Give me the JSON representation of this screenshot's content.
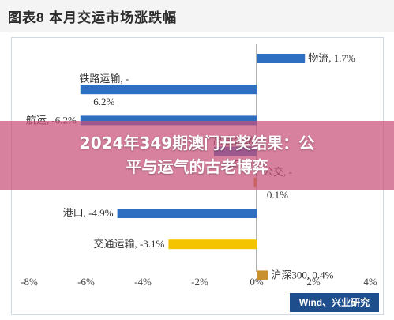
{
  "header": {
    "title": "图表8 本月交运市场涨跌幅"
  },
  "overlay": {
    "line1": "2024年349期澳门开奖结果：公",
    "line2": "平与运气的古老博弈"
  },
  "brand": {
    "text": "Wind、兴业研究"
  },
  "colors": {
    "bar": "#2f6fc2",
    "bar_highlight": "#f5c400",
    "bar_small": "#c8902e",
    "brand": "#1f4e8c"
  },
  "chart_data": {
    "type": "bar",
    "orientation": "horizontal",
    "categories": [
      "物流, 1.7%",
      "铁路运输, -6.2%",
      "航运, -6.2%",
      "高速公路, -1.5%",
      "公交, -0.1%",
      "港口, -4.9%",
      "交通运输, -3.1%",
      "沪深300, 0.4%"
    ],
    "values": [
      1.7,
      -6.2,
      -6.2,
      -1.5,
      -0.1,
      -4.9,
      -3.1,
      0.4
    ],
    "xlim": [
      -8,
      4
    ],
    "xticks": [
      "-8%",
      "-6%",
      "-4%",
      "-2%",
      "0%",
      "2%",
      "4%"
    ],
    "highlight": "交通运输",
    "xlabel": "",
    "ylabel": ""
  }
}
